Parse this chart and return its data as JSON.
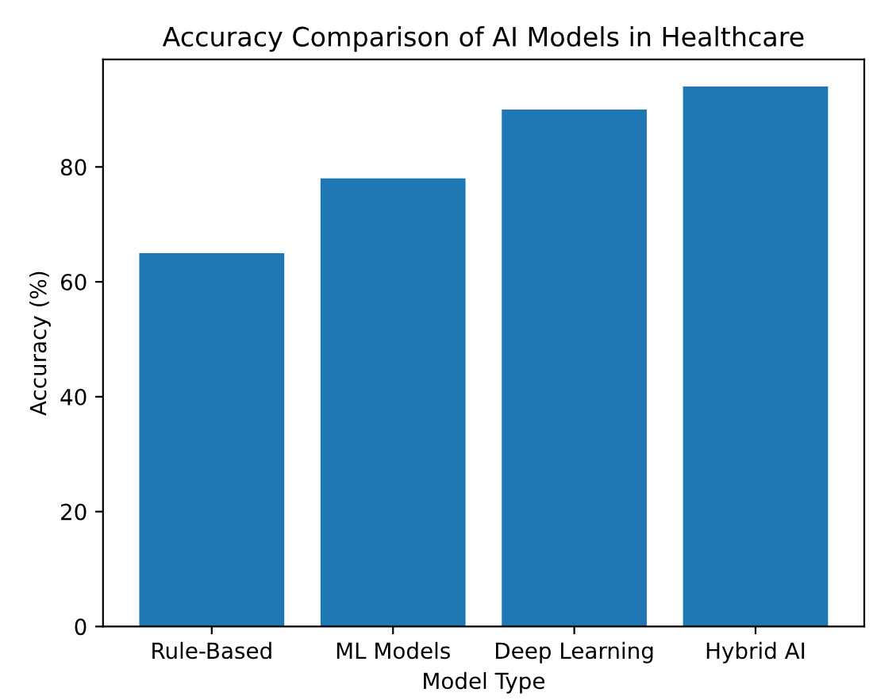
{
  "chart_data": {
    "type": "bar",
    "title": "Accuracy Comparison of AI Models in Healthcare",
    "xlabel": "Model Type",
    "ylabel": "Accuracy (%)",
    "categories": [
      "Rule-Based",
      "ML Models",
      "Deep Learning",
      "Hybrid AI"
    ],
    "values": [
      65,
      78,
      90,
      94
    ],
    "color": "#1f77b4",
    "ylim": [
      0,
      98.7
    ],
    "yticks": [
      0,
      20,
      40,
      60,
      80
    ],
    "grid": false
  }
}
